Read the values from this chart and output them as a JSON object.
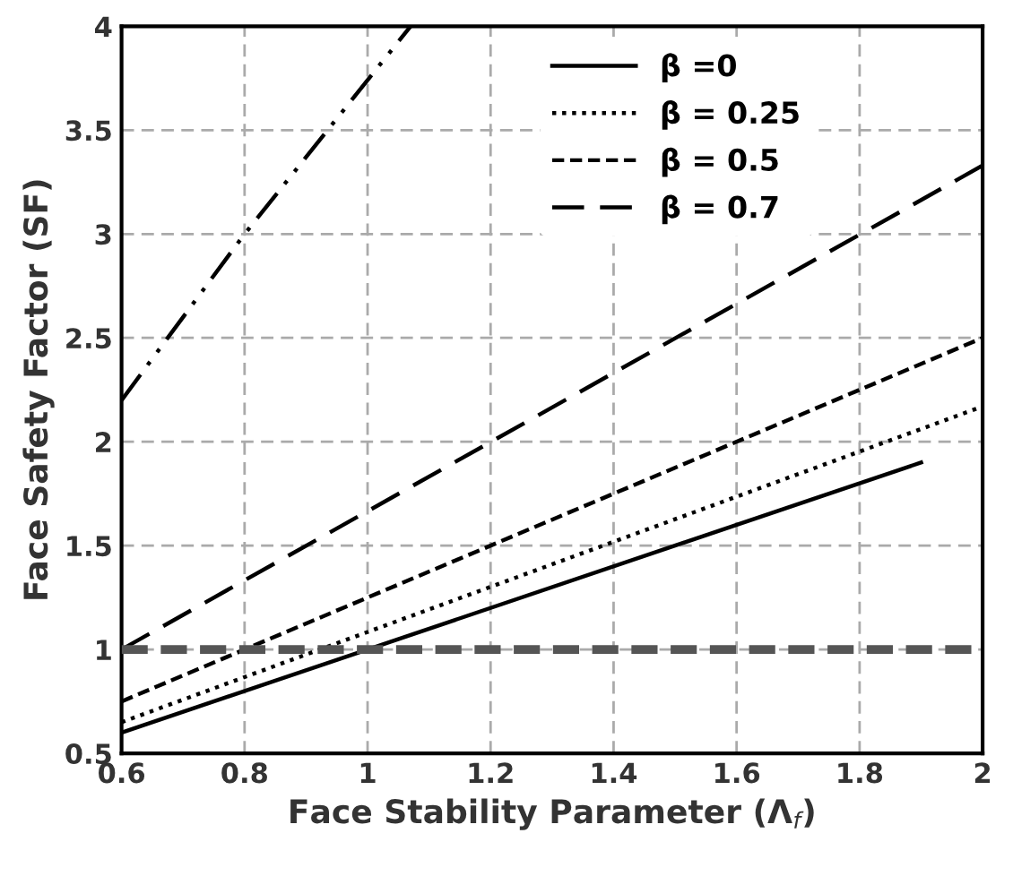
{
  "chart_data": {
    "type": "line",
    "xlabel": "Face Stability Parameter (Λ$_{f}$)",
    "ylabel": "Face Safety Factor (SF)",
    "xlim": [
      0.6,
      2
    ],
    "ylim": [
      0.5,
      4
    ],
    "xticks": [
      0.6,
      0.8,
      1,
      1.2,
      1.4,
      1.6,
      1.8,
      2
    ],
    "yticks": [
      0.5,
      1,
      1.5,
      2,
      2.5,
      3,
      3.5,
      4
    ],
    "grid": true,
    "legend": "top right",
    "marker": "none",
    "series": [
      {
        "name": "β =0",
        "color": "#000000",
        "line_style": "solid",
        "x": [
          0.6,
          1.9
        ],
        "values": [
          0.6,
          1.9
        ]
      },
      {
        "name": "β = 0.25",
        "color": "#000000",
        "line_style": "dotted",
        "x": [
          0.6,
          2
        ],
        "values": [
          0.65,
          2.17
        ]
      },
      {
        "name": "β = 0.5",
        "color": "#000000",
        "line_style": "dashed",
        "x": [
          0.6,
          2
        ],
        "values": [
          0.75,
          2.5
        ]
      },
      {
        "name": "β = 0.7",
        "color": "#000000",
        "line_style": "longdash",
        "x": [
          0.6,
          2
        ],
        "values": [
          1.0,
          3.33
        ]
      },
      {
        "color": "#000000",
        "line_style": "dashdot",
        "x": [
          0.6,
          0.8,
          1.07
        ],
        "values": [
          2.2,
          3.0,
          4.0
        ]
      }
    ],
    "ref_lines": [
      {
        "axis": "y",
        "value": 1,
        "color": "#555555",
        "line_style": "dashed"
      }
    ]
  }
}
